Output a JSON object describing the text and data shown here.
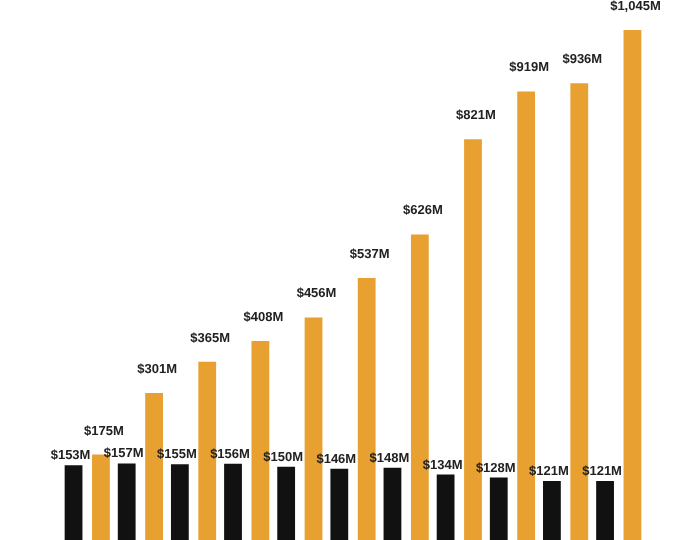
{
  "chart_data": {
    "type": "bar",
    "categories": [
      null,
      null,
      null,
      null,
      null,
      null,
      null,
      null,
      null,
      null,
      null
    ],
    "series": [
      {
        "color": "#111111",
        "values": [
          153,
          157,
          155,
          156,
          150,
          146,
          148,
          134,
          128,
          121,
          121
        ],
        "value_labels": [
          "$153M",
          "$157M",
          "$155M",
          "$156M",
          "$150M",
          "$146M",
          "$148M",
          "$134M",
          "$128M",
          "$121M",
          "$121M"
        ]
      },
      {
        "color": "#e8a030",
        "values": [
          175,
          301,
          365,
          408,
          456,
          537,
          626,
          821,
          919,
          936,
          1045
        ],
        "value_labels": [
          "$175M",
          "$301M",
          "$365M",
          "$408M",
          "$456M",
          "$537M",
          "$626M",
          "$821M",
          "$919M",
          "$936M",
          "$1,045M"
        ]
      }
    ],
    "legend": false
  }
}
